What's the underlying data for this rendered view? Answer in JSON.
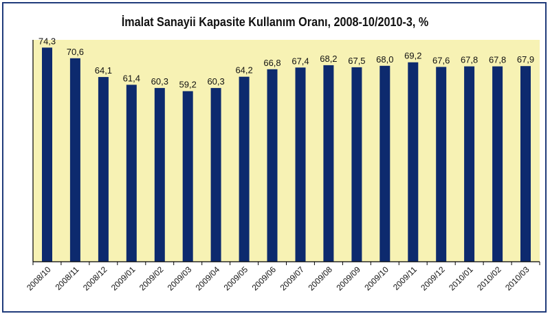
{
  "chart_data": {
    "type": "bar",
    "title": "İmalat Sanayii Kapasite Kullanım Oranı, 2008-10/2010-3, %",
    "categories": [
      "2008/10",
      "2008/11",
      "2008/12",
      "2009/01",
      "2009/02",
      "2009/03",
      "2009/04",
      "2009/05",
      "2009/06",
      "2009/07",
      "2009/08",
      "2009/09",
      "2009/10",
      "2009/11",
      "2009/12",
      "2010/01",
      "2010/02",
      "2010/03"
    ],
    "values": [
      74.3,
      70.6,
      64.1,
      61.4,
      60.3,
      59.2,
      60.3,
      64.2,
      66.8,
      67.4,
      68.2,
      67.5,
      68.0,
      69.2,
      67.6,
      67.8,
      67.8,
      67.9
    ],
    "value_labels": [
      "74,3",
      "70,6",
      "64,1",
      "61,4",
      "60,3",
      "59,2",
      "60,3",
      "64,2",
      "66,8",
      "67,4",
      "68,2",
      "67,5",
      "68,0",
      "69,2",
      "67,6",
      "67,8",
      "67,8",
      "67,9"
    ],
    "xlabel": "",
    "ylabel": "",
    "ylim": [
      0,
      77
    ],
    "grid": false,
    "legend": "none",
    "colors": {
      "bar": "#0d2a6e",
      "plot_background": "#f7f2b4",
      "frame": "#1f3a7a",
      "text": "#111111"
    }
  }
}
